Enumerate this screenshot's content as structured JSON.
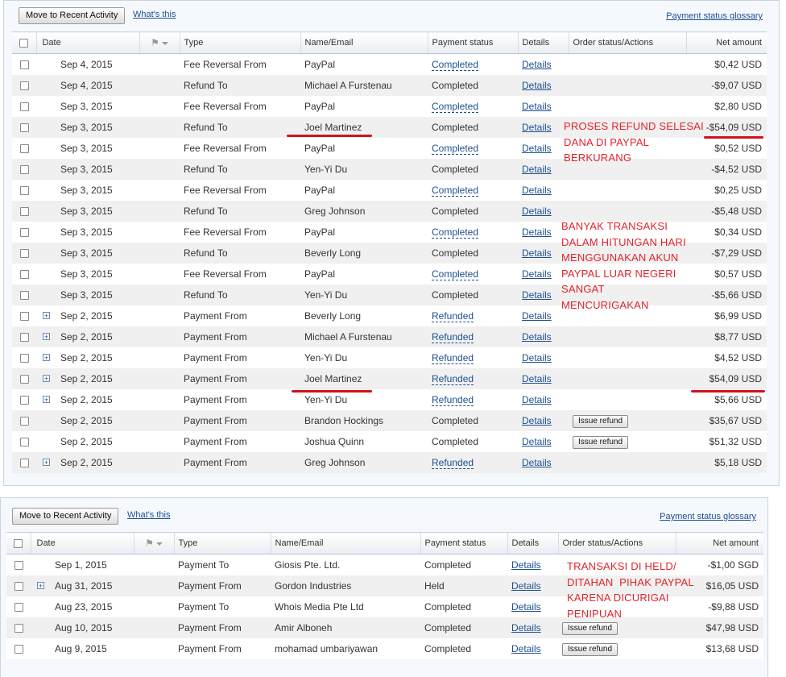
{
  "panel1": {
    "move_button": "Move to Recent Activity",
    "whats_this": "What's this",
    "glossary": "Payment status glossary",
    "columns": [
      "Date",
      "Type",
      "Name/Email",
      "Payment status",
      "Details",
      "Order status/Actions",
      "Net amount"
    ],
    "rows": [
      {
        "date": "Sep 4, 2015",
        "type": "Fee Reversal From",
        "name": "PayPal",
        "status": "Completed",
        "status_link": true,
        "details": "Details",
        "action": "",
        "amount": "$0,42 USD",
        "expand": false
      },
      {
        "date": "Sep 4, 2015",
        "type": "Refund To",
        "name": "Michael A Furstenau",
        "status": "Completed",
        "status_link": false,
        "details": "Details",
        "action": "",
        "amount": "-$9,07 USD",
        "expand": false
      },
      {
        "date": "Sep 3, 2015",
        "type": "Fee Reversal From",
        "name": "PayPal",
        "status": "Completed",
        "status_link": true,
        "details": "Details",
        "action": "",
        "amount": "$2,80 USD",
        "expand": false
      },
      {
        "date": "Sep 3, 2015",
        "type": "Refund To",
        "name": "Joel Martinez",
        "status": "Completed",
        "status_link": false,
        "details": "Details",
        "action": "",
        "amount": "-$54,09 USD",
        "expand": false
      },
      {
        "date": "Sep 3, 2015",
        "type": "Fee Reversal From",
        "name": "PayPal",
        "status": "Completed",
        "status_link": true,
        "details": "Details",
        "action": "",
        "amount": "$0,52 USD",
        "expand": false
      },
      {
        "date": "Sep 3, 2015",
        "type": "Refund To",
        "name": "Yen-Yi Du",
        "status": "Completed",
        "status_link": false,
        "details": "Details",
        "action": "",
        "amount": "-$4,52 USD",
        "expand": false
      },
      {
        "date": "Sep 3, 2015",
        "type": "Fee Reversal From",
        "name": "PayPal",
        "status": "Completed",
        "status_link": true,
        "details": "Details",
        "action": "",
        "amount": "$0,25 USD",
        "expand": false
      },
      {
        "date": "Sep 3, 2015",
        "type": "Refund To",
        "name": "Greg Johnson",
        "status": "Completed",
        "status_link": false,
        "details": "Details",
        "action": "",
        "amount": "-$5,48 USD",
        "expand": false
      },
      {
        "date": "Sep 3, 2015",
        "type": "Fee Reversal From",
        "name": "PayPal",
        "status": "Completed",
        "status_link": true,
        "details": "Details",
        "action": "",
        "amount": "$0,34 USD",
        "expand": false
      },
      {
        "date": "Sep 3, 2015",
        "type": "Refund To",
        "name": "Beverly Long",
        "status": "Completed",
        "status_link": false,
        "details": "Details",
        "action": "",
        "amount": "-$7,29 USD",
        "expand": false
      },
      {
        "date": "Sep 3, 2015",
        "type": "Fee Reversal From",
        "name": "PayPal",
        "status": "Completed",
        "status_link": true,
        "details": "Details",
        "action": "",
        "amount": "$0,57 USD",
        "expand": false
      },
      {
        "date": "Sep 3, 2015",
        "type": "Refund To",
        "name": "Yen-Yi Du",
        "status": "Completed",
        "status_link": false,
        "details": "Details",
        "action": "",
        "amount": "-$5,66 USD",
        "expand": false
      },
      {
        "date": "Sep 2, 2015",
        "type": "Payment From",
        "name": "Beverly Long",
        "status": "Refunded",
        "status_link": true,
        "details": "Details",
        "action": "",
        "amount": "$6,99 USD",
        "expand": true
      },
      {
        "date": "Sep 2, 2015",
        "type": "Payment From",
        "name": "Michael A Furstenau",
        "status": "Refunded",
        "status_link": true,
        "details": "Details",
        "action": "",
        "amount": "$8,77 USD",
        "expand": true
      },
      {
        "date": "Sep 2, 2015",
        "type": "Payment From",
        "name": "Yen-Yi Du",
        "status": "Refunded",
        "status_link": true,
        "details": "Details",
        "action": "",
        "amount": "$4,52 USD",
        "expand": true
      },
      {
        "date": "Sep 2, 2015",
        "type": "Payment From",
        "name": "Joel Martinez",
        "status": "Refunded",
        "status_link": true,
        "details": "Details",
        "action": "",
        "amount": "$54,09 USD",
        "expand": true
      },
      {
        "date": "Sep 2, 2015",
        "type": "Payment From",
        "name": "Yen-Yi Du",
        "status": "Refunded",
        "status_link": true,
        "details": "Details",
        "action": "",
        "amount": "$5,66 USD",
        "expand": true
      },
      {
        "date": "Sep 2, 2015",
        "type": "Payment From",
        "name": "Brandon Hockings",
        "status": "Completed",
        "status_link": false,
        "details": "Details",
        "action": "Issue refund",
        "amount": "$35,67 USD",
        "expand": false
      },
      {
        "date": "Sep 2, 2015",
        "type": "Payment From",
        "name": "Joshua Quinn",
        "status": "Completed",
        "status_link": false,
        "details": "Details",
        "action": "Issue refund",
        "amount": "$51,32 USD",
        "expand": false
      },
      {
        "date": "Sep 2, 2015",
        "type": "Payment From",
        "name": "Greg Johnson",
        "status": "Refunded",
        "status_link": true,
        "details": "Details",
        "action": "",
        "amount": "$5,18 USD",
        "expand": true
      }
    ]
  },
  "panel2": {
    "move_button": "Move to Recent Activity",
    "whats_this": "What's this",
    "glossary": "Payment status glossary",
    "columns": [
      "Date",
      "Type",
      "Name/Email",
      "Payment status",
      "Details",
      "Order status/Actions",
      "Net amount"
    ],
    "rows": [
      {
        "date": "Sep 1, 2015",
        "type": "Payment To",
        "name": "Giosis Pte. Ltd.",
        "status": "Completed",
        "status_link": false,
        "details": "Details",
        "action": "",
        "amount": "-$1,00 SGD",
        "expand": false
      },
      {
        "date": "Aug 31, 2015",
        "type": "Payment From",
        "name": "Gordon Industries",
        "status": "Held",
        "status_link": false,
        "details": "Details",
        "action": "",
        "amount": "$16,05 USD",
        "expand": true
      },
      {
        "date": "Aug 23, 2015",
        "type": "Payment To",
        "name": "Whois Media Pte Ltd",
        "status": "Completed",
        "status_link": false,
        "details": "Details",
        "action": "",
        "amount": "-$9,88 USD",
        "expand": false
      },
      {
        "date": "Aug 10, 2015",
        "type": "Payment From",
        "name": "Amir Alboneh",
        "status": "Completed",
        "status_link": false,
        "details": "Details",
        "action": "Issue refund",
        "amount": "$47,98 USD",
        "expand": false
      },
      {
        "date": "Aug 9, 2015",
        "type": "Payment From",
        "name": "mohamad umbariyawan",
        "status": "Completed",
        "status_link": false,
        "details": "Details",
        "action": "Issue refund",
        "amount": "$13,68 USD",
        "expand": false
      }
    ]
  },
  "annotations": {
    "note1": "PROSES REFUND SELESAI\nDANA DI PAYPAL\nBERKURANG",
    "note2": "BANYAK TRANSAKSI\nDALAM HITUNGAN HARI\nMENGGUNAKAN AKUN\nPAYPAL LUAR NEGERI\nSANGAT\nMENCURIGAKAN",
    "note3": "TRANSAKSI DI HELD/\nDITAHAN  PIHAK PAYPAL\nKARENA DICURIGAI\nPENIPUAN",
    "color": "#e0242c"
  },
  "icons": {
    "flag": "flag-icon",
    "expand": "expand-plus-icon",
    "checkbox": "checkbox-icon"
  }
}
